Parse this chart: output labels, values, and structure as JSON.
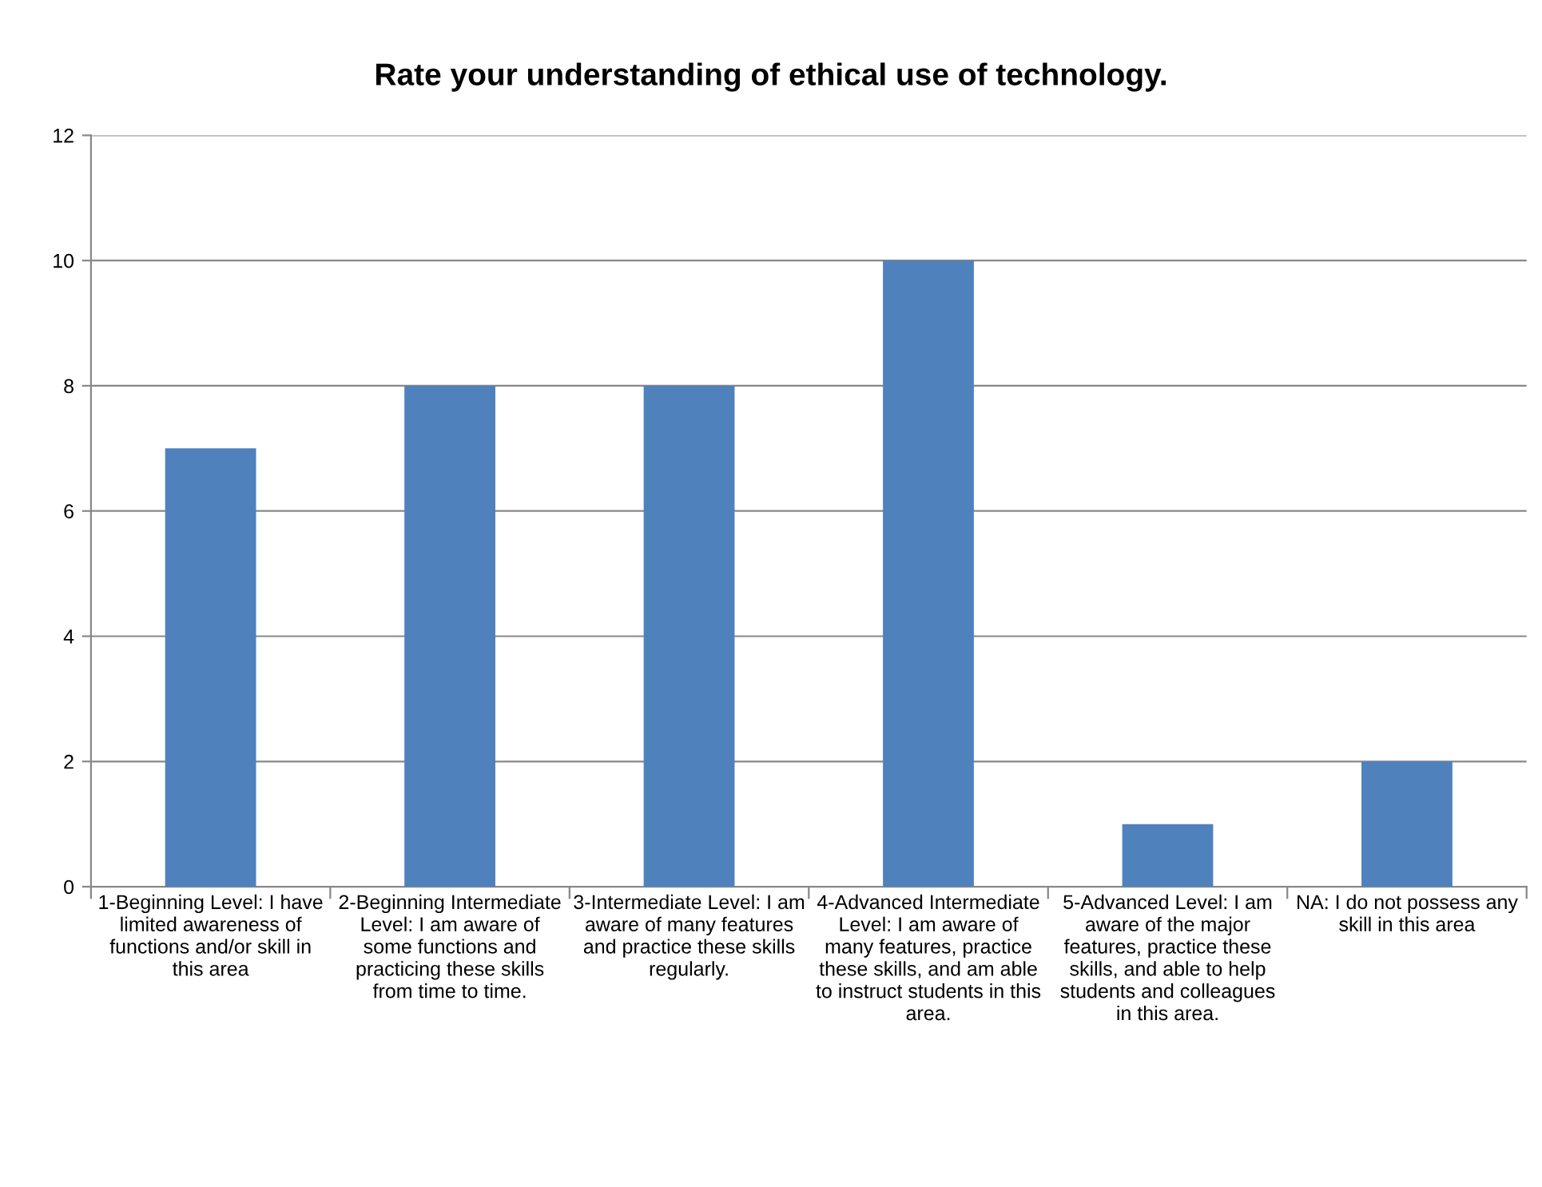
{
  "chart_data": {
    "type": "bar",
    "title": "Rate your understanding of ethical use of technology.",
    "categories": [
      "1-Beginning Level: I have limited awareness of functions and/or skill in this area",
      "2-Beginning Intermediate Level: I am aware of some functions and practicing these skills from time to time.",
      "3-Intermediate Level: I am aware of many features and practice these skills regularly.",
      "4-Advanced Intermediate Level: I am aware of many features, practice these skills, and am able to instruct students in this area.",
      "5-Advanced Level: I am aware of the major features, practice these skills, and able to help students and colleagues in this area.",
      "NA: I do not possess any skill in this area"
    ],
    "values": [
      7,
      8,
      8,
      10,
      1,
      2
    ],
    "color": "#4f81bd",
    "ylim": [
      0,
      12
    ],
    "yticks": [
      0,
      2,
      4,
      6,
      8,
      10,
      12
    ],
    "grid": "y",
    "legend": false
  }
}
